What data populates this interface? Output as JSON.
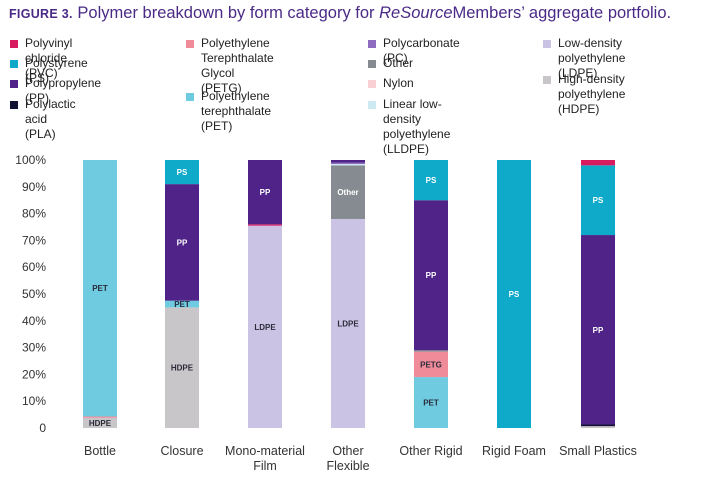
{
  "figure_label": "FIGURE 3.",
  "title_part1": "Polymer breakdown by form category for",
  "title_italic": "ReSource",
  "title_part2": "Members’ aggregate portfolio.",
  "legend": [
    {
      "key": "PVC",
      "label": "Polyvinyl chloride (PVC)",
      "color": "#d81b5e"
    },
    {
      "key": "PS",
      "label": "Polystyrene (PS)",
      "color": "#0fa9c9"
    },
    {
      "key": "PP",
      "label": "Polypropylene (PP)",
      "color": "#4f2388"
    },
    {
      "key": "PLA",
      "label": "Polylactic acid (PLA)",
      "color": "#111133"
    },
    {
      "key": "PETG",
      "label": "Polyethylene\nTerephthalate Glycol\n(PETG)",
      "color": "#f08c9a"
    },
    {
      "key": "PET",
      "label": "Polyethylene\nterephthalate (PET)",
      "color": "#6ecbe0"
    },
    {
      "key": "PC",
      "label": "Polycarbonate (PC)",
      "color": "#8e6cc0"
    },
    {
      "key": "Other",
      "label": "Other",
      "color": "#858b90"
    },
    {
      "key": "Nylon",
      "label": "Nylon",
      "color": "#f9d0d4"
    },
    {
      "key": "LLDPE",
      "label": "Linear low-density\npolyethylene (LLDPE)",
      "color": "#cdeaf3"
    },
    {
      "key": "LDPE",
      "label": "Low-density\npolyethylene (LDPE)",
      "color": "#cbc3e3"
    },
    {
      "key": "HDPE",
      "label": "High-density\npolyethylene (HDPE)",
      "color": "#c8c6c8"
    }
  ],
  "chart_data": {
    "type": "bar",
    "stacked": true,
    "ylim": [
      0,
      100
    ],
    "y_ticks": [
      "0",
      "10%",
      "20%",
      "30%",
      "40%",
      "50%",
      "60%",
      "70%",
      "80%",
      "90%",
      "100%"
    ],
    "categories": [
      "Bottle",
      "Closure",
      "Mono-material\nFilm",
      "Other\nFlexible",
      "Other Rigid",
      "Rigid Foam",
      "Small Plastics"
    ],
    "bars": [
      {
        "category": "Bottle",
        "segments": [
          {
            "key": "HDPE",
            "value": 3.8,
            "label": "HDPE"
          },
          {
            "key": "PETG",
            "value": 0.5,
            "label": ""
          },
          {
            "key": "PET",
            "value": 95.7,
            "label": "PET"
          }
        ]
      },
      {
        "category": "Closure",
        "segments": [
          {
            "key": "HDPE",
            "value": 45,
            "label": "HDPE"
          },
          {
            "key": "PET",
            "value": 2.5,
            "label": "PET"
          },
          {
            "key": "PP",
            "value": 43.5,
            "label": "PP"
          },
          {
            "key": "PS",
            "value": 9,
            "label": "PS"
          }
        ]
      },
      {
        "category": "Mono-material Film",
        "segments": [
          {
            "key": "LDPE",
            "value": 75.5,
            "label": "LDPE"
          },
          {
            "key": "PVC",
            "value": 0.5,
            "label": ""
          },
          {
            "key": "PP",
            "value": 24,
            "label": "PP"
          }
        ]
      },
      {
        "category": "Other Flexible",
        "segments": [
          {
            "key": "LDPE",
            "value": 78,
            "label": "LDPE"
          },
          {
            "key": "Other",
            "value": 20,
            "label": "Other"
          },
          {
            "key": "LLDPE",
            "value": 0.5,
            "label": ""
          },
          {
            "key": "PC",
            "value": 0.5,
            "label": ""
          },
          {
            "key": "PP",
            "value": 1,
            "label": ""
          }
        ]
      },
      {
        "category": "Other Rigid",
        "segments": [
          {
            "key": "PET",
            "value": 19,
            "label": "PET"
          },
          {
            "key": "PETG",
            "value": 9.5,
            "label": "PETG"
          },
          {
            "key": "Other",
            "value": 0.5,
            "label": ""
          },
          {
            "key": "PP",
            "value": 56,
            "label": "PP"
          },
          {
            "key": "PS",
            "value": 15,
            "label": "PS"
          }
        ]
      },
      {
        "category": "Rigid Foam",
        "segments": [
          {
            "key": "PS",
            "value": 100,
            "label": "PS"
          }
        ]
      },
      {
        "category": "Small Plastics",
        "segments": [
          {
            "key": "HDPE",
            "value": 0.7,
            "label": ""
          },
          {
            "key": "PLA",
            "value": 0.6,
            "label": ""
          },
          {
            "key": "PP",
            "value": 70.7,
            "label": "PP"
          },
          {
            "key": "PS",
            "value": 26,
            "label": "PS"
          },
          {
            "key": "PVC",
            "value": 2,
            "label": ""
          }
        ]
      }
    ]
  }
}
